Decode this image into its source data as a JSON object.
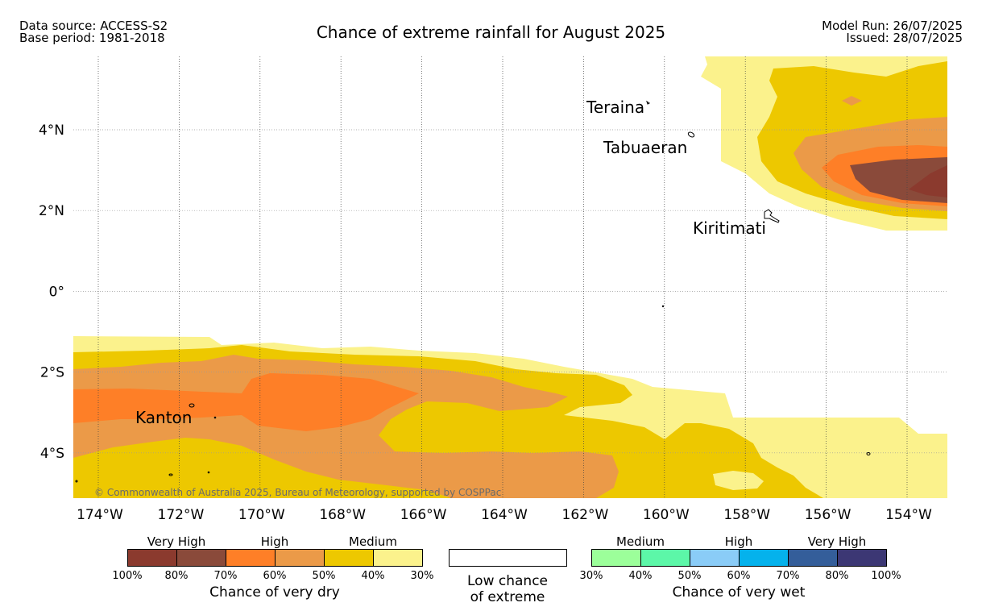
{
  "header": {
    "data_source": "Data source: ACCESS-S2",
    "base_period": "Base period: 1981-2018",
    "title": "Chance of extreme rainfall for August 2025",
    "model_run": "Model Run: 26/07/2025",
    "issued": "Issued: 28/07/2025"
  },
  "map": {
    "lat_labels": [
      "4°N",
      "2°N",
      "0°",
      "2°S",
      "4°S"
    ],
    "lon_labels": [
      "174°W",
      "172°W",
      "170°W",
      "168°W",
      "166°W",
      "164°W",
      "162°W",
      "160°W",
      "158°W",
      "156°W",
      "154°W"
    ],
    "places": [
      "Teraina",
      "Tabuaeran",
      "Kiritimati",
      "Kanton"
    ],
    "copyright": "© Commonwealth of Australia 2025, Bureau of Meteorology, supported by COSPPac"
  },
  "legend": {
    "dry": {
      "categories": [
        "Very High",
        "High",
        "Medium"
      ],
      "ticks": [
        "100%",
        "80%",
        "70%",
        "60%",
        "50%",
        "40%",
        "30%"
      ],
      "colors": [
        "#8b3a2e",
        "#8a4a3a",
        "#fe7f27",
        "#eb9a48",
        "#edc800",
        "#fbf28c"
      ],
      "caption": "Chance of very dry"
    },
    "low": {
      "caption_line1": "Low chance",
      "caption_line2": "of extreme"
    },
    "wet": {
      "categories": [
        "Medium",
        "High",
        "Very High"
      ],
      "ticks": [
        "30%",
        "40%",
        "50%",
        "60%",
        "70%",
        "80%",
        "100%"
      ],
      "colors": [
        "#9cff9a",
        "#5cf7a8",
        "#8accf7",
        "#05b2ec",
        "#345e9a",
        "#3c3774"
      ],
      "caption": "Chance of very wet"
    }
  }
}
